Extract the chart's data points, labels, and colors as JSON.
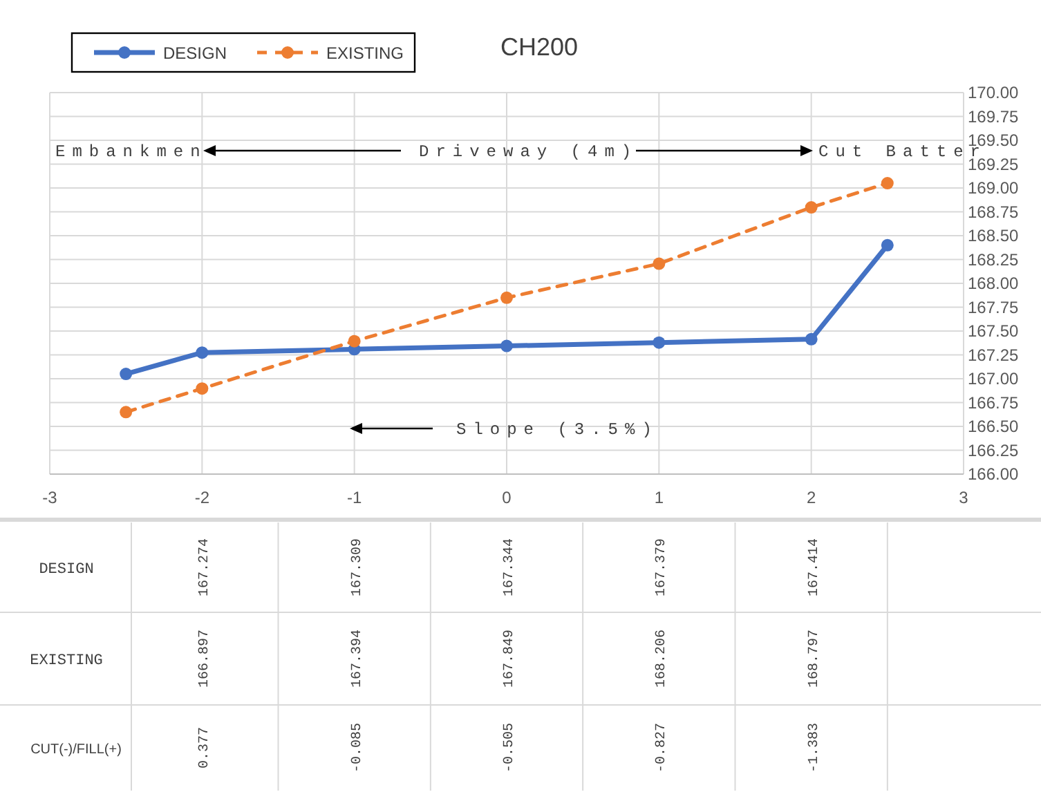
{
  "chart_data": {
    "type": "line",
    "title": "CH200",
    "x": [
      -2.5,
      -2,
      -1,
      0,
      1,
      2,
      2.5
    ],
    "series": [
      {
        "name": "DESIGN",
        "color": "#4472c4",
        "line_style": "solid",
        "values": [
          167.05,
          167.274,
          167.309,
          167.344,
          167.379,
          167.414,
          168.4
        ]
      },
      {
        "name": "EXISTING",
        "color": "#ed7d31",
        "line_style": "dashed",
        "values": [
          166.65,
          166.897,
          167.394,
          167.849,
          168.206,
          168.797,
          169.05
        ]
      }
    ],
    "xlim": [
      -3,
      3
    ],
    "xticks": [
      -3,
      -2,
      -1,
      0,
      1,
      2,
      3
    ],
    "ylim": [
      166,
      170
    ],
    "yticks": [
      {
        "value": 166,
        "label": "166.00"
      },
      {
        "value": 166.25,
        "label": "166.25"
      },
      {
        "value": 166.5,
        "label": "166.50"
      },
      {
        "value": 166.75,
        "label": "166.75"
      },
      {
        "value": 167,
        "label": "167.00"
      },
      {
        "value": 167.25,
        "label": "167.25"
      },
      {
        "value": 167.5,
        "label": "167.50"
      },
      {
        "value": 167.75,
        "label": "167.75"
      },
      {
        "value": 168,
        "label": "168.00"
      },
      {
        "value": 168.25,
        "label": "168.25"
      },
      {
        "value": 168.5,
        "label": "168.50"
      },
      {
        "value": 168.75,
        "label": "168.75"
      },
      {
        "value": 169,
        "label": "169.00"
      },
      {
        "value": 169.25,
        "label": "169.25"
      },
      {
        "value": 169.5,
        "label": "169.50"
      },
      {
        "value": 169.75,
        "label": "169.75"
      },
      {
        "value": 170,
        "label": "170.00"
      }
    ],
    "annotations": [
      "Embankmen",
      "Driveway (4m)",
      "Cut Batter",
      "Slope (3.5%)",
      "CUT(-)/FILL(+)",
      "167.274",
      "167.309",
      "167.344",
      "167.379",
      "167.414",
      "166.897",
      "167.394",
      "167.849",
      "168.206",
      "168.797",
      "0.377",
      "-0.085",
      "-0.505",
      "-0.827",
      "-1.383"
    ],
    "grid": true,
    "legend": "top left",
    "marker": "circle"
  }
}
